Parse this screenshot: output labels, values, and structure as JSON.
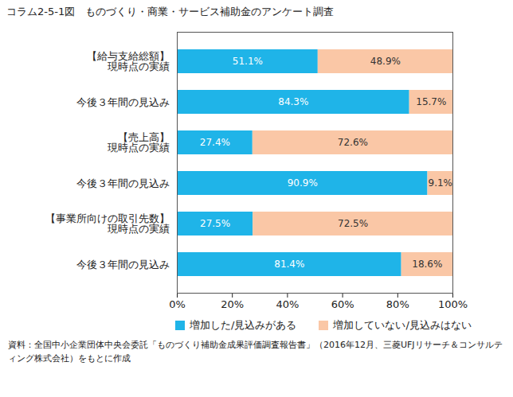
{
  "chart_data": {
    "type": "bar",
    "orientation": "horizontal",
    "stacked": true,
    "data_labels": true,
    "grid": false,
    "legend": "bottom",
    "title": "コラム2-5-1図　ものづくり・商業・サービス補助金のアンケート調査",
    "caption": "資料：全国中小企業団体中央会委託「ものづくり補助金成果評価調査報告書」（2016年12月、三菱UFJリサーチ＆コンサルティング株式会社）をもとに作成",
    "categories": [
      "【給与支給総額】\n現時点の実績",
      "今後３年間の見込み",
      "【売上高】\n現時点の実績",
      "今後３年間の見込み",
      "【事業所向けの取引先数】\n現時点の実績",
      "今後３年間の見込み"
    ],
    "series": [
      {
        "name": "増加した/見込みがある",
        "color": "#1fb4e8",
        "values": [
          51.1,
          84.3,
          27.4,
          90.9,
          27.5,
          81.4
        ],
        "value_labels": [
          "51.1%",
          "84.3%",
          "27.4%",
          "90.9%",
          "27.5%",
          "81.4%"
        ]
      },
      {
        "name": "増加していない/見込みはない",
        "color": "#fac7a6",
        "values": [
          48.9,
          15.7,
          72.6,
          9.1,
          72.5,
          18.6
        ],
        "value_labels": [
          "48.9%",
          "15.7%",
          "72.6%",
          "9.1%",
          "72.5%",
          "18.6%"
        ]
      }
    ],
    "xlim": [
      0,
      100
    ],
    "xticks": [
      {
        "value": 0,
        "label": "0%"
      },
      {
        "value": 20,
        "label": "20%"
      },
      {
        "value": 40,
        "label": "40%"
      },
      {
        "value": 60,
        "label": "60%"
      },
      {
        "value": 80,
        "label": "80%"
      },
      {
        "value": 100,
        "label": "100%"
      }
    ]
  }
}
